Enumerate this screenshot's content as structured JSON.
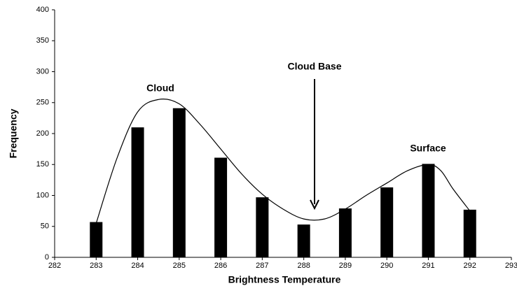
{
  "chart_data": {
    "type": "combo",
    "xlabel": "Brightness Temperature",
    "ylabel": "Frequency",
    "annotations": [
      "Cloud",
      "Cloud Base",
      "Surface"
    ],
    "xlim": [
      282,
      293
    ],
    "xticks": [
      282,
      283,
      284,
      285,
      286,
      287,
      288,
      289,
      290,
      291,
      292,
      293
    ],
    "ylim": [
      0,
      400
    ],
    "yticks": [
      0,
      50,
      100,
      150,
      200,
      250,
      300,
      350,
      400
    ],
    "series": [
      {
        "type": "bar",
        "color": "#000000",
        "x": [
          283,
          284,
          285,
          286,
          287,
          288,
          289,
          290,
          291,
          292
        ],
        "values": [
          57,
          210,
          241,
          161,
          97,
          53,
          79,
          113,
          151,
          77
        ]
      },
      {
        "type": "line",
        "color": "#000000",
        "x": [
          283,
          283.5,
          284,
          284.5,
          285,
          285.5,
          286,
          286.5,
          287,
          287.5,
          288,
          288.5,
          289,
          289.5,
          290,
          290.5,
          291,
          291.3,
          291.6,
          292
        ],
        "values": [
          55,
          160,
          235,
          255,
          248,
          215,
          175,
          135,
          102,
          78,
          62,
          62,
          78,
          100,
          120,
          140,
          150,
          140,
          110,
          75
        ]
      }
    ]
  }
}
